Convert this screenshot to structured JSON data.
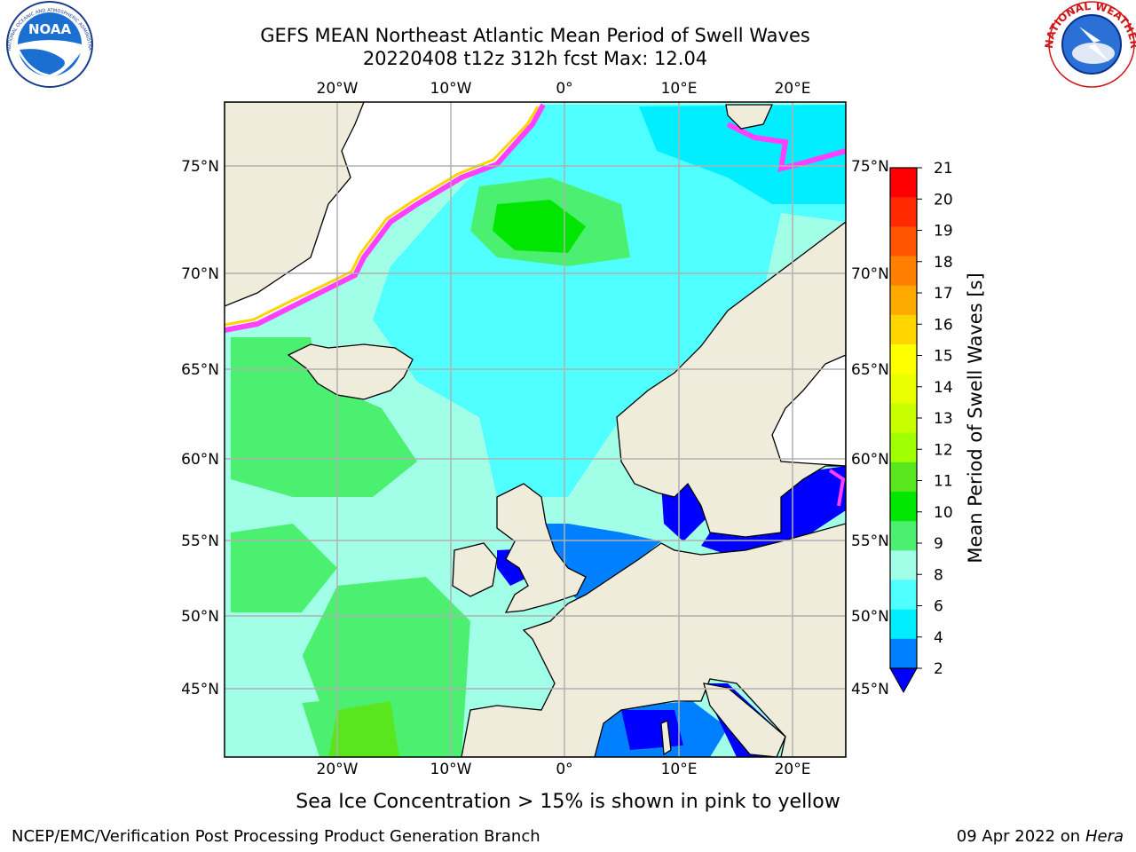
{
  "title": {
    "line1": "GEFS MEAN Northeast Atlantic Mean Period of Swell Waves",
    "line2": "20220408 t12z 312h fcst   Max: 12.04"
  },
  "map": {
    "lon_range": [
      -30,
      25
    ],
    "lat_range": [
      41,
      78
    ],
    "top_lon_labels": [
      "20°W",
      "10°W",
      "0°",
      "10°E",
      "20°E"
    ],
    "bottom_lon_labels": [
      "20°W",
      "10°W",
      "0°",
      "10°E",
      "20°E"
    ],
    "left_lat_labels": [
      "75°N",
      "70°N",
      "65°N",
      "60°N",
      "55°N",
      "50°N",
      "45°N"
    ],
    "right_lat_labels": [
      "75°N",
      "70°N",
      "65°N",
      "60°N",
      "55°N",
      "50°N",
      "45°N"
    ],
    "colors": {
      "land": "#efecdc",
      "sea_ice_unplotted": "#ffffff",
      "grid": "#b0b0b0",
      "coast": "#000000"
    }
  },
  "colorbar": {
    "label": "Mean Period of Swell Waves [s]",
    "ticks": [
      "21",
      "20",
      "19",
      "18",
      "17",
      "16",
      "15",
      "14",
      "13",
      "12",
      "11",
      "10",
      "9",
      "8",
      "6",
      "4",
      "2"
    ],
    "bands": [
      {
        "color": "#ff0000"
      },
      {
        "color": "#ff2a00"
      },
      {
        "color": "#ff5500"
      },
      {
        "color": "#ff7f00"
      },
      {
        "color": "#ffaa00"
      },
      {
        "color": "#ffd400"
      },
      {
        "color": "#ffff00"
      },
      {
        "color": "#eaff00"
      },
      {
        "color": "#c8ff00"
      },
      {
        "color": "#a0ff00"
      },
      {
        "color": "#5ae61e"
      },
      {
        "color": "#00e600"
      },
      {
        "color": "#4cf070"
      },
      {
        "color": "#a0ffe6"
      },
      {
        "color": "#50ffff"
      },
      {
        "color": "#00eeff"
      },
      {
        "color": "#0080ff"
      }
    ],
    "under_color": "#0000ff"
  },
  "footer": {
    "note": "Sea Ice Concentration > 15% is shown in pink to yellow",
    "left": "NCEP/EMC/Verification Post Processing Product Generation Branch",
    "right_date": "09 Apr 2022 on ",
    "right_host": "Hera"
  },
  "logos": {
    "noaa_text": "NOAA",
    "noaa_ring": "NATIONAL OCEANIC AND ATMOSPHERIC ADMINISTRATION · U.S. DEPARTMENT OF COMMERCE",
    "nws_ring": "NATIONAL WEATHER SERVICE"
  }
}
